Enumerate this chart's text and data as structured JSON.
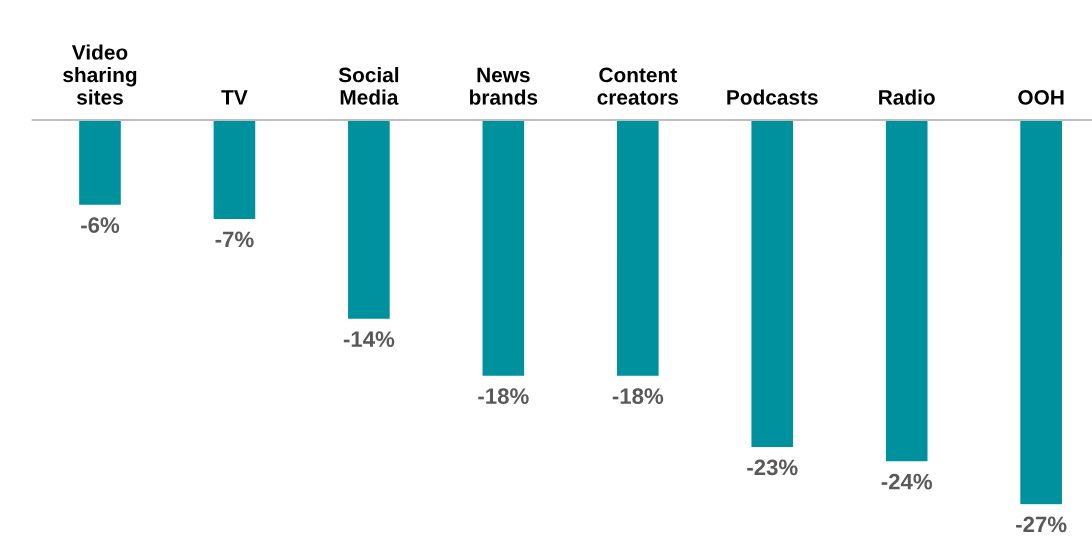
{
  "chart_data": {
    "type": "bar",
    "categories": [
      "Video\nsharing\nsites",
      "TV",
      "Social\nMedia",
      "News\nbrands",
      "Content\ncreators",
      "Podcasts",
      "Radio",
      "OOH"
    ],
    "values": [
      -6,
      -7,
      -14,
      -18,
      -18,
      -23,
      -24,
      -27
    ],
    "color": "#00919e",
    "value_labels": [
      "-6%",
      "-7%",
      "-14%",
      "-18%",
      "-18%",
      "-23%",
      "-24%",
      "-27%"
    ],
    "grid": false,
    "legend": false
  }
}
